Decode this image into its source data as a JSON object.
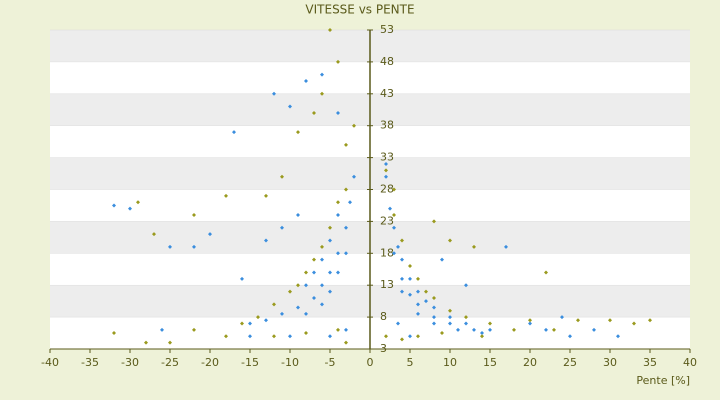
{
  "chart_data": {
    "type": "scatter",
    "title": "VITESSE vs PENTE",
    "xlabel": "Pente [%]",
    "xlim": [
      -40,
      40
    ],
    "xticks": [
      -40,
      -35,
      -30,
      -25,
      -20,
      -15,
      -10,
      -5,
      0,
      5,
      10,
      15,
      20,
      25,
      30,
      35,
      40
    ],
    "ylim": [
      3,
      53
    ],
    "yticks": [
      3,
      8,
      13,
      18,
      23,
      28,
      33,
      38,
      43,
      48,
      53
    ],
    "grid": true,
    "series": [
      {
        "color": "#3b8ede",
        "x": [
          2,
          2.5,
          3,
          3.5,
          4,
          5,
          6,
          7,
          8,
          10,
          12,
          15,
          3,
          4,
          5,
          6,
          8,
          10,
          13,
          4,
          6,
          8,
          11,
          14,
          9,
          12,
          17,
          20,
          22,
          25,
          28,
          31,
          24,
          3.5,
          5,
          2,
          -2,
          -2.5,
          -3,
          -4,
          -5,
          -6,
          -7,
          -9,
          -11,
          -13,
          -15,
          -3,
          -4,
          -5,
          -6,
          -8,
          -4,
          -5,
          -6,
          -7,
          -8,
          -9,
          -11,
          -13,
          -10,
          -12,
          -17,
          -8,
          -6,
          -4,
          -20,
          -25,
          -30,
          -32,
          -22,
          -15,
          -10,
          -5,
          -3,
          -26,
          -16
        ],
        "values": [
          30,
          25,
          22,
          19,
          17,
          14,
          12,
          10.5,
          9.5,
          8,
          7,
          6,
          18,
          14,
          11.5,
          10,
          8,
          7,
          6,
          12,
          8.5,
          7,
          6,
          5.5,
          17,
          13,
          19,
          7,
          6,
          5,
          6,
          5,
          8,
          7,
          5,
          32,
          30,
          26,
          22,
          18,
          15,
          13,
          11,
          9.5,
          8.5,
          7.5,
          7,
          18,
          15,
          12,
          10,
          8.5,
          24,
          20,
          17,
          15,
          13,
          24,
          22,
          20,
          41,
          43,
          37,
          45,
          46,
          40,
          21,
          19,
          25,
          25.5,
          19,
          5,
          5,
          5,
          6,
          6,
          14
        ]
      },
      {
        "color": "#9a9a1e",
        "x": [
          2,
          3,
          3,
          4,
          5,
          6,
          7,
          8,
          10,
          12,
          15,
          18,
          20,
          23,
          26,
          30,
          33,
          35,
          22,
          13,
          8,
          10,
          6,
          9,
          14,
          4,
          2,
          -2,
          -3,
          -3,
          -4,
          -5,
          -6,
          -7,
          -8,
          -9,
          -10,
          -12,
          -14,
          -16,
          -5,
          -4,
          -6,
          -7,
          -9,
          -11,
          -13,
          -18,
          -22,
          -27,
          -29,
          -32,
          -28,
          -25,
          -22,
          -18,
          -12,
          -8,
          -4,
          -3
        ],
        "values": [
          31,
          28,
          24,
          20,
          16,
          14,
          12,
          11,
          9,
          8,
          7,
          6,
          7.5,
          6,
          7.5,
          7.5,
          7,
          7.5,
          15,
          19,
          23,
          20,
          5,
          5.5,
          5,
          4.5,
          5,
          38,
          35,
          28,
          26,
          22,
          19,
          17,
          15,
          13,
          12,
          10,
          8,
          7,
          53,
          48,
          43,
          40,
          37,
          30,
          27,
          27,
          24,
          21,
          26,
          5.5,
          4,
          4,
          6,
          5,
          5,
          5.5,
          6,
          4
        ]
      }
    ]
  }
}
